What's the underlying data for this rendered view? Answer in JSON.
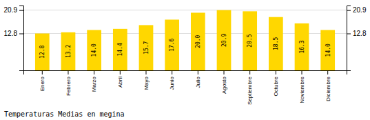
{
  "chart_data": {
    "type": "bar",
    "title": "Temperaturas Medias en megina",
    "categories": [
      "Enero",
      "Febrero",
      "Marzo",
      "Abril",
      "Mayo",
      "Junio",
      "Julio",
      "Agosto",
      "Septiembre",
      "Octubre",
      "Noviembre",
      "Diciembre"
    ],
    "values": [
      12.8,
      13.2,
      14.0,
      14.4,
      15.7,
      17.6,
      20.0,
      20.9,
      20.5,
      18.5,
      16.3,
      14.0
    ],
    "value_labels": [
      "12.8",
      "13.2",
      "14.0",
      "14.4",
      "15.7",
      "17.6",
      "20.0",
      "20.9",
      "20.5",
      "18.5",
      "16.3",
      "14.0"
    ],
    "data_labels": true,
    "color": "#FFD700",
    "ylim": [
      0,
      22.5
    ],
    "yticks": [
      12.8,
      20.9
    ],
    "y2lim": [
      0,
      22.5
    ],
    "y2ticks": [
      12.8,
      20.9
    ],
    "grid": true
  }
}
